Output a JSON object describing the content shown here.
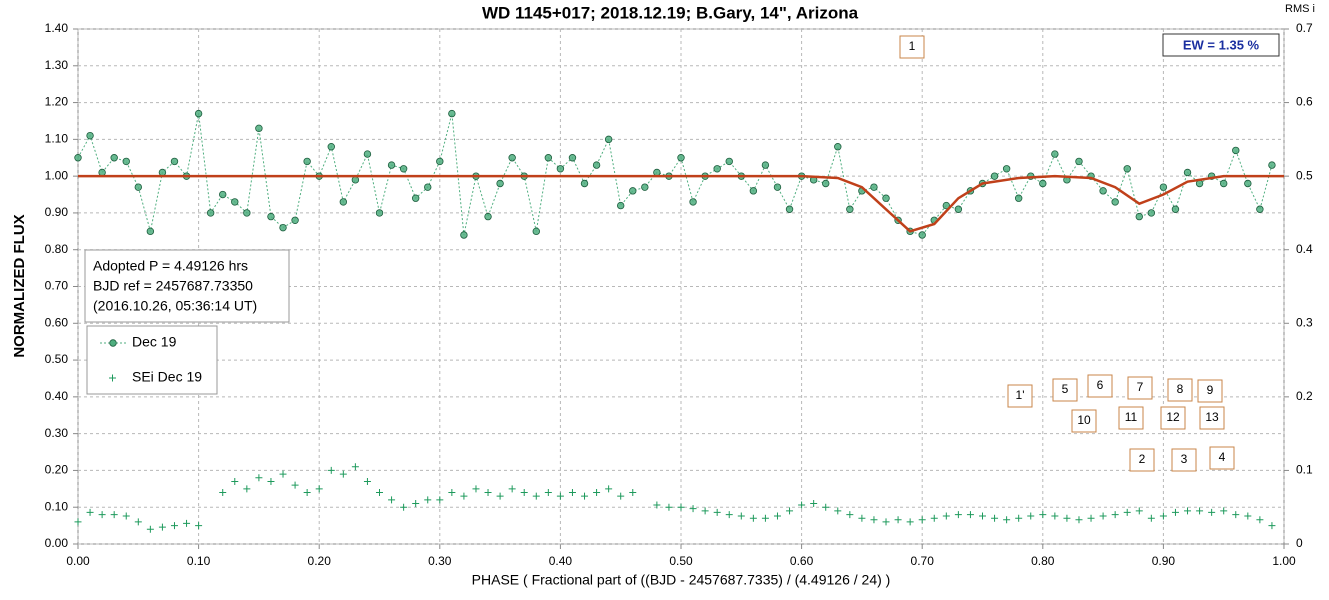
{
  "chart_data": {
    "type": "scatter",
    "title": "WD 1145+017; 2018.12.19; B.Gary, 14\", Arizona",
    "xlabel": "PHASE ( Fractional part of ((BJD - 2457687.7335) / (4.49126 / 24) )",
    "ylabel": "NORMALIZED FLUX",
    "y2label": "RMS i",
    "info_lines": [
      "Adopted P = 4.49126 hrs",
      "BJD ref = 2457687.73350",
      "(2016.10.26, 05:36:14 UT)"
    ],
    "ew_label": "EW =  1.35 %",
    "annotations": [
      "1",
      "1'",
      "5",
      "6",
      "7",
      "8",
      "9",
      "10",
      "11",
      "12",
      "13",
      "2",
      "3",
      "4"
    ],
    "grid": true,
    "xlim": [
      0,
      1
    ],
    "ylim": [
      0,
      1.4
    ],
    "y2lim": [
      0,
      0.7
    ],
    "xticks": [
      {
        "value": 0,
        "label": "0.00"
      },
      {
        "value": 0.1,
        "label": "0.10"
      },
      {
        "value": 0.2,
        "label": "0.20"
      },
      {
        "value": 0.3,
        "label": "0.30"
      },
      {
        "value": 0.4,
        "label": "0.40"
      },
      {
        "value": 0.5,
        "label": "0.50"
      },
      {
        "value": 0.6,
        "label": "0.60"
      },
      {
        "value": 0.7,
        "label": "0.70"
      },
      {
        "value": 0.8,
        "label": "0.80"
      },
      {
        "value": 0.9,
        "label": "0.90"
      },
      {
        "value": 1,
        "label": "1.00"
      }
    ],
    "yticks": [
      {
        "value": 0,
        "label": "0.00"
      },
      {
        "value": 0.1,
        "label": "0.10"
      },
      {
        "value": 0.2,
        "label": "0.20"
      },
      {
        "value": 0.3,
        "label": "0.30"
      },
      {
        "value": 0.4,
        "label": "0.40"
      },
      {
        "value": 0.5,
        "label": "0.50"
      },
      {
        "value": 0.6,
        "label": "0.60"
      },
      {
        "value": 0.7,
        "label": "0.70"
      },
      {
        "value": 0.8,
        "label": "0.80"
      },
      {
        "value": 0.9,
        "label": "0.90"
      },
      {
        "value": 1,
        "label": "1.00"
      },
      {
        "value": 1.1,
        "label": "1.10"
      },
      {
        "value": 1.2,
        "label": "1.20"
      },
      {
        "value": 1.3,
        "label": "1.30"
      },
      {
        "value": 1.4,
        "label": "1.40"
      }
    ],
    "y2ticks": [
      0,
      0.1,
      0.2,
      0.3,
      0.4,
      0.5,
      0.6,
      0.7
    ],
    "x": [
      0,
      0.01,
      0.02,
      0.03,
      0.04,
      0.05,
      0.06,
      0.07,
      0.08,
      0.09,
      0.1,
      0.11,
      0.12,
      0.13,
      0.14,
      0.15,
      0.16,
      0.17,
      0.18,
      0.19,
      0.2,
      0.21,
      0.22,
      0.23,
      0.24,
      0.25,
      0.26,
      0.27,
      0.28,
      0.29,
      0.3,
      0.31,
      0.32,
      0.33,
      0.34,
      0.35,
      0.36,
      0.37,
      0.38,
      0.39,
      0.4,
      0.41,
      0.42,
      0.43,
      0.44,
      0.45,
      0.46,
      0.47,
      0.48,
      0.49,
      0.5,
      0.51,
      0.52,
      0.53,
      0.54,
      0.55,
      0.56,
      0.57,
      0.58,
      0.59,
      0.6,
      0.61,
      0.62,
      0.63,
      0.64,
      0.65,
      0.66,
      0.67,
      0.68,
      0.69,
      0.7,
      0.71,
      0.72,
      0.73,
      0.74,
      0.75,
      0.76,
      0.77,
      0.78,
      0.79,
      0.8,
      0.81,
      0.82,
      0.83,
      0.84,
      0.85,
      0.86,
      0.87,
      0.88,
      0.89,
      0.9,
      0.91,
      0.92,
      0.93,
      0.94,
      0.95,
      0.96,
      0.97,
      0.98,
      0.99
    ],
    "series": [
      {
        "name": "Dec 19",
        "color": "#4fae7f",
        "marker": "circle",
        "line": "dashed",
        "values": [
          1.05,
          1.11,
          1.01,
          1.05,
          1.04,
          0.97,
          0.85,
          1.01,
          1.04,
          1.0,
          1.17,
          0.9,
          0.95,
          0.93,
          0.9,
          1.13,
          0.89,
          0.86,
          0.88,
          1.04,
          1.0,
          1.08,
          0.93,
          0.99,
          1.06,
          0.9,
          1.03,
          1.02,
          0.94,
          0.97,
          1.04,
          1.17,
          0.84,
          1.0,
          0.89,
          0.98,
          1.05,
          1.0,
          0.85,
          1.05,
          1.02,
          1.05,
          0.98,
          1.03,
          1.1,
          0.92,
          0.96,
          0.97,
          1.01,
          1.0,
          1.05,
          0.93,
          1.0,
          1.02,
          1.04,
          1.0,
          0.96,
          1.03,
          0.97,
          0.91,
          1.0,
          0.99,
          0.98,
          1.08,
          0.91,
          0.96,
          0.97,
          0.94,
          0.88,
          0.85,
          0.84,
          0.88,
          0.92,
          0.91,
          0.96,
          0.98,
          1.0,
          1.02,
          0.94,
          1.0,
          0.98,
          1.06,
          0.99,
          1.04,
          1.0,
          0.96,
          0.93,
          1.02,
          0.89,
          0.9,
          0.97,
          0.91,
          1.01,
          0.98,
          1.0,
          0.98,
          1.07,
          0.98,
          0.91,
          1.03
        ]
      },
      {
        "name": "SEi Dec 19",
        "color": "#1e9a5c",
        "marker": "plus",
        "axis": "y2",
        "values": [
          0.03,
          0.043,
          0.04,
          0.04,
          0.038,
          0.03,
          0.02,
          0.023,
          0.025,
          0.028,
          0.025,
          null,
          0.07,
          0.085,
          0.075,
          0.09,
          0.085,
          0.095,
          0.08,
          0.07,
          0.075,
          0.1,
          0.095,
          0.105,
          0.085,
          0.07,
          0.06,
          0.05,
          0.055,
          0.06,
          0.06,
          0.07,
          0.065,
          0.075,
          0.07,
          0.065,
          0.075,
          0.07,
          0.065,
          0.07,
          0.065,
          0.07,
          0.065,
          0.07,
          0.075,
          0.065,
          0.07,
          null,
          0.053,
          0.05,
          0.05,
          0.048,
          0.045,
          0.043,
          0.04,
          0.038,
          0.035,
          0.035,
          0.038,
          0.045,
          0.053,
          0.055,
          0.05,
          0.045,
          0.04,
          0.035,
          0.033,
          0.03,
          0.033,
          0.03,
          0.033,
          0.035,
          0.038,
          0.04,
          0.04,
          0.038,
          0.035,
          0.033,
          0.035,
          0.038,
          0.04,
          0.038,
          0.035,
          0.033,
          0.035,
          0.038,
          0.04,
          0.043,
          0.045,
          0.035,
          0.038,
          0.043,
          0.045,
          0.045,
          0.043,
          0.045,
          0.04,
          0.038,
          0.033,
          0.025
        ]
      }
    ],
    "model": {
      "color": "#c0401a",
      "x": [
        0,
        0.6,
        0.63,
        0.65,
        0.67,
        0.69,
        0.71,
        0.73,
        0.75,
        0.78,
        0.81,
        0.84,
        0.86,
        0.88,
        0.9,
        0.92,
        0.95,
        1
      ],
      "values": [
        1,
        1,
        0.995,
        0.97,
        0.91,
        0.85,
        0.87,
        0.94,
        0.98,
        0.995,
        1,
        0.995,
        0.97,
        0.925,
        0.95,
        0.985,
        1,
        1
      ]
    }
  }
}
